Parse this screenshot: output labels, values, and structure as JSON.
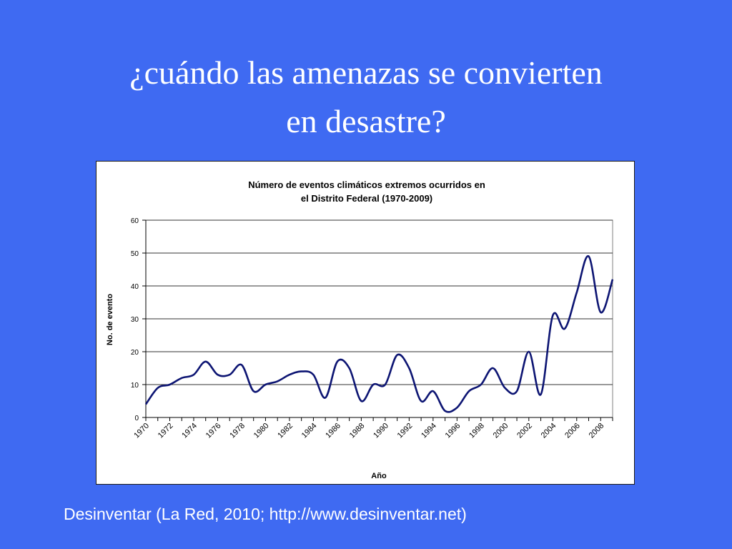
{
  "slide": {
    "title_line1": "¿cuándo las amenazas se convierten",
    "title_line2": "en desastre?",
    "source": "Desinventar (La Red, 2010; http://www.desinventar.net)"
  },
  "colors": {
    "background": "#3f6af2",
    "series_line": "#0d1573",
    "text_white": "#ffffff",
    "gridline": "#333333"
  },
  "chart_data": {
    "type": "line",
    "title_line1": "Número de eventos climáticos extremos ocurridos en",
    "title_line2": "el Distrito Federal  (1970-2009)",
    "xlabel": "Año",
    "ylabel": "No. de evento",
    "ylim": [
      0,
      60
    ],
    "yticks": [
      0,
      10,
      20,
      30,
      40,
      50,
      60
    ],
    "xlim": [
      1970,
      2009
    ],
    "xticks": [
      "1970",
      "1972",
      "1974",
      "1976",
      "1978",
      "1980",
      "1982",
      "1984",
      "1986",
      "1988",
      "1990",
      "1992",
      "1994",
      "1996",
      "1998",
      "2000",
      "2002",
      "2004",
      "2006",
      "2008"
    ],
    "grid": "horizontal",
    "legend": "none",
    "x": [
      1970,
      1971,
      1972,
      1973,
      1974,
      1975,
      1976,
      1977,
      1978,
      1979,
      1980,
      1981,
      1982,
      1983,
      1984,
      1985,
      1986,
      1987,
      1988,
      1989,
      1990,
      1991,
      1992,
      1993,
      1994,
      1995,
      1996,
      1997,
      1998,
      1999,
      2000,
      2001,
      2002,
      2003,
      2004,
      2005,
      2006,
      2007,
      2008,
      2009
    ],
    "values": [
      4,
      9,
      10,
      12,
      13,
      17,
      13,
      13,
      16,
      8,
      10,
      11,
      13,
      14,
      13,
      6,
      17,
      15,
      5,
      10,
      10,
      19,
      15,
      5,
      8,
      2,
      3,
      8,
      10,
      15,
      9,
      8,
      20,
      7,
      31,
      27,
      38,
      49,
      32,
      42
    ]
  }
}
